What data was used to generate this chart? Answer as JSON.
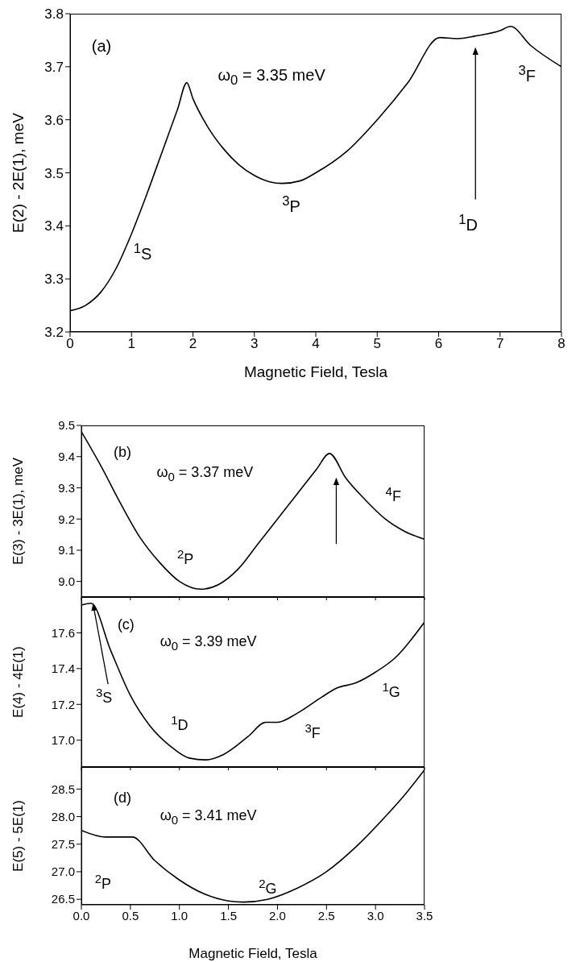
{
  "chart_data": [
    {
      "type": "line",
      "xlabel": "Magnetic Field, Tesla",
      "ylabel": "E(2) - 2E(1), meV",
      "xlim": [
        0,
        8
      ],
      "xticks": [
        0,
        1,
        2,
        3,
        4,
        5,
        6,
        7,
        8
      ],
      "ylim": [
        3.2,
        3.8
      ],
      "yticks": [
        3.2,
        3.3,
        3.4,
        3.5,
        3.6,
        3.7,
        3.8
      ],
      "grid": false,
      "legend": false,
      "x": [
        0,
        0.25,
        0.5,
        0.75,
        1.0,
        1.25,
        1.5,
        1.75,
        1.9,
        2.0,
        2.25,
        2.5,
        2.75,
        3.0,
        3.25,
        3.45,
        3.75,
        4.0,
        4.5,
        5.0,
        5.5,
        6.02,
        6.3,
        6.6,
        7.0,
        7.17,
        7.5,
        8.0
      ],
      "series": [
        {
          "color": "#000000",
          "values": [
            3.24,
            3.25,
            3.275,
            3.32,
            3.385,
            3.46,
            3.54,
            3.62,
            3.67,
            3.64,
            3.585,
            3.545,
            3.515,
            3.495,
            3.483,
            3.48,
            3.485,
            3.5,
            3.54,
            3.6,
            3.67,
            3.755,
            3.753,
            3.758,
            3.768,
            3.776,
            3.74,
            3.7
          ]
        }
      ],
      "annotations": [
        "(a)",
        "ω$_{0}$ = 3.35 meV",
        "$^{1}$S",
        "$^{3}$P",
        "$^{1}$D",
        "$^{3}$F"
      ]
    },
    {
      "type": "line",
      "ylabel": "E(3) - 3E(1), meV",
      "xlim": [
        0,
        3.5
      ],
      "xticks": [
        0,
        0.5,
        1,
        1.5,
        2,
        2.5,
        3,
        3.5
      ],
      "ylim": [
        8.95,
        9.5
      ],
      "yticks": [
        {
          "value": 9.0,
          "label": "9.0"
        },
        9.1,
        9.2,
        9.3,
        9.4,
        9.5
      ],
      "tick_labels": "y",
      "grid": false,
      "legend": false,
      "x": [
        0,
        0.2,
        0.4,
        0.6,
        0.8,
        1.0,
        1.22,
        1.4,
        1.6,
        1.8,
        2.0,
        2.2,
        2.4,
        2.53,
        2.7,
        2.9,
        3.1,
        3.3,
        3.5
      ],
      "series": [
        {
          "color": "#000000",
          "values": [
            9.48,
            9.37,
            9.25,
            9.14,
            9.06,
            9.0,
            8.975,
            8.99,
            9.04,
            9.12,
            9.2,
            9.28,
            9.36,
            9.41,
            9.33,
            9.26,
            9.2,
            9.16,
            9.135
          ]
        }
      ],
      "annotations": [
        "(b)",
        "ω$_{0}$ = 3.37 meV",
        "$^{2}$P",
        "$^{4}$F"
      ]
    },
    {
      "type": "line",
      "ylabel": "E(4) - 4E(1)",
      "xlim": [
        0,
        3.5
      ],
      "xticks": [
        0,
        0.5,
        1,
        1.5,
        2,
        2.5,
        3,
        3.5
      ],
      "ylim": [
        16.85,
        17.8
      ],
      "yticks": [
        {
          "value": 17.0,
          "label": "17.0"
        },
        17.2,
        17.4,
        17.6
      ],
      "tick_labels": "y",
      "grid": false,
      "legend": false,
      "x": [
        0,
        0.1,
        0.3,
        0.5,
        0.7,
        0.9,
        1.1,
        1.27,
        1.45,
        1.7,
        1.88,
        2.0,
        2.2,
        2.45,
        2.6,
        2.8,
        3.0,
        3.2,
        3.5
      ],
      "series": [
        {
          "color": "#000000",
          "values": [
            17.755,
            17.765,
            17.5,
            17.25,
            17.08,
            16.97,
            16.9,
            16.89,
            16.92,
            17.02,
            17.1,
            17.1,
            17.15,
            17.24,
            17.29,
            17.32,
            17.38,
            17.46,
            17.66
          ]
        }
      ],
      "annotations": [
        "(c)",
        "ω$_{0}$ = 3.39 meV",
        {
          "text": "$^{3}$S",
          "x": 0.12,
          "y": 17.76
        },
        "$^{1}$D",
        "$^{3}$F",
        "$^{1}$G"
      ]
    },
    {
      "type": "line",
      "xlabel": "Magnetic Field, Tesla",
      "ylabel": "E(5) - 5E(1)",
      "xlim": [
        0,
        3.5
      ],
      "xticks": [
        {
          "value": 0,
          "label": "0.0"
        },
        0.5,
        {
          "value": 1,
          "label": "1.0"
        },
        1.5,
        {
          "value": 2,
          "label": "2.0"
        },
        2.5,
        {
          "value": 3,
          "label": "3.0"
        },
        3.5
      ],
      "ylim": [
        26.4,
        28.9
      ],
      "yticks": [
        26.5,
        {
          "value": 27,
          "label": "27.0"
        },
        27.5,
        {
          "value": 28,
          "label": "28.0"
        },
        28.5
      ],
      "grid": false,
      "legend": false,
      "x": [
        0,
        0.25,
        0.52,
        0.75,
        1.0,
        1.25,
        1.5,
        1.65,
        1.9,
        2.2,
        2.5,
        2.8,
        3.1,
        3.3,
        3.5
      ],
      "series": [
        {
          "color": "#000000",
          "values": [
            27.75,
            27.63,
            27.63,
            27.2,
            26.85,
            26.6,
            26.47,
            26.45,
            26.5,
            26.7,
            27.0,
            27.45,
            28.0,
            28.4,
            28.85
          ]
        }
      ],
      "annotations": [
        "(d)",
        "ω$_{0}$ = 3.41 meV",
        "$^{2}$P",
        "$^{2}$G"
      ]
    }
  ]
}
